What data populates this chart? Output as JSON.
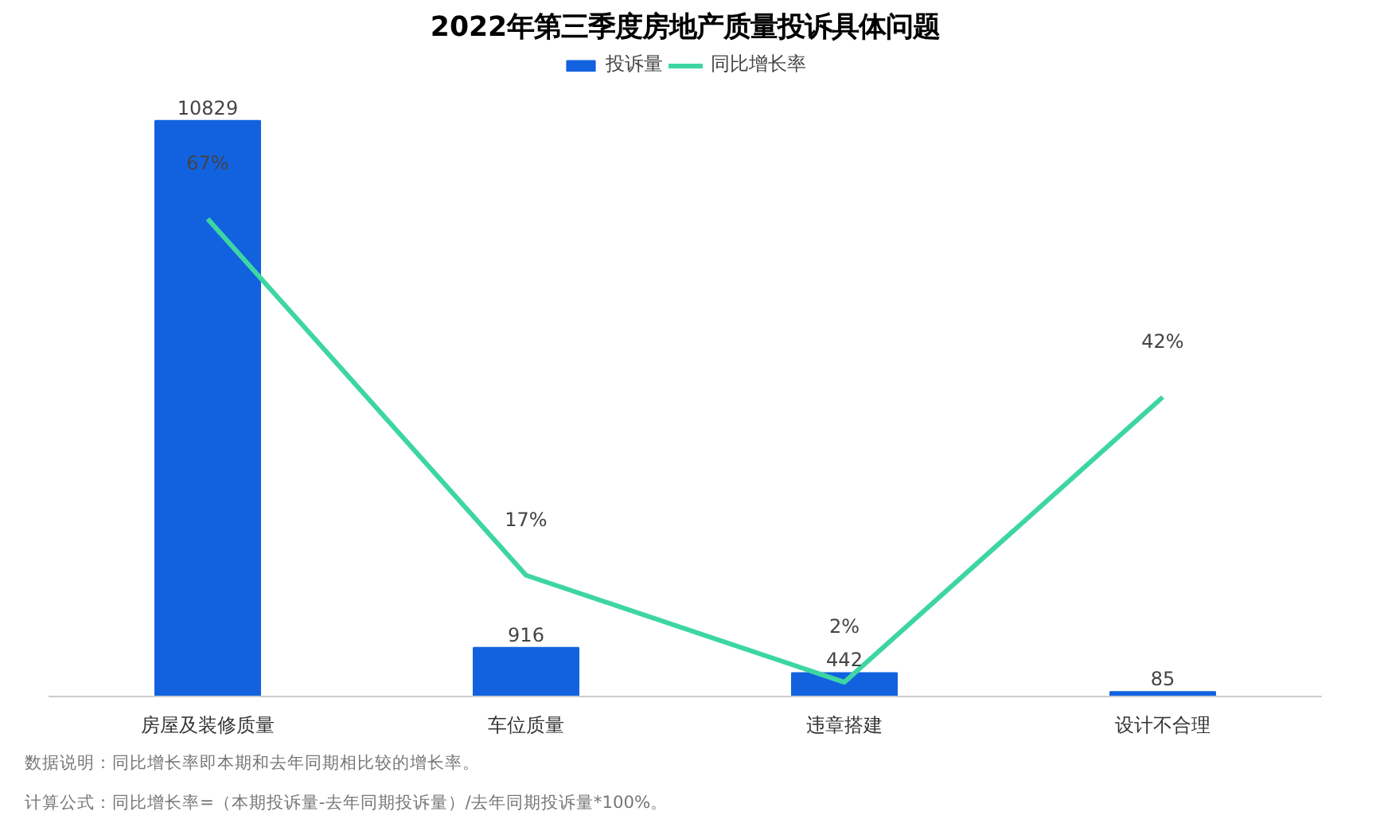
{
  "chart_data": {
    "type": "bar",
    "title": "2022年第三季度房地产质量投诉具体问题",
    "categories": [
      "房屋及装修质量",
      "车位质量",
      "违章搭建",
      "设计不合理"
    ],
    "series": [
      {
        "name": "投诉量",
        "color": "#1262e0",
        "values": [
          10829,
          916,
          442,
          85
        ]
      },
      {
        "name": "同比增长率",
        "type": "line",
        "axis": "y2",
        "color": "#3dd6a3",
        "values": [
          67,
          17,
          2,
          42
        ],
        "value_labels": [
          "67%",
          "17%",
          "2%",
          "42%"
        ]
      }
    ],
    "data_labels": true,
    "legend": "top",
    "annotations": [
      "数据说明：同比增长率即本期和去年同期相比较的增长率。",
      "计算公式：同比增长率=（本期投诉量-去年同期投诉量）/去年同期投诉量*100%。"
    ]
  }
}
